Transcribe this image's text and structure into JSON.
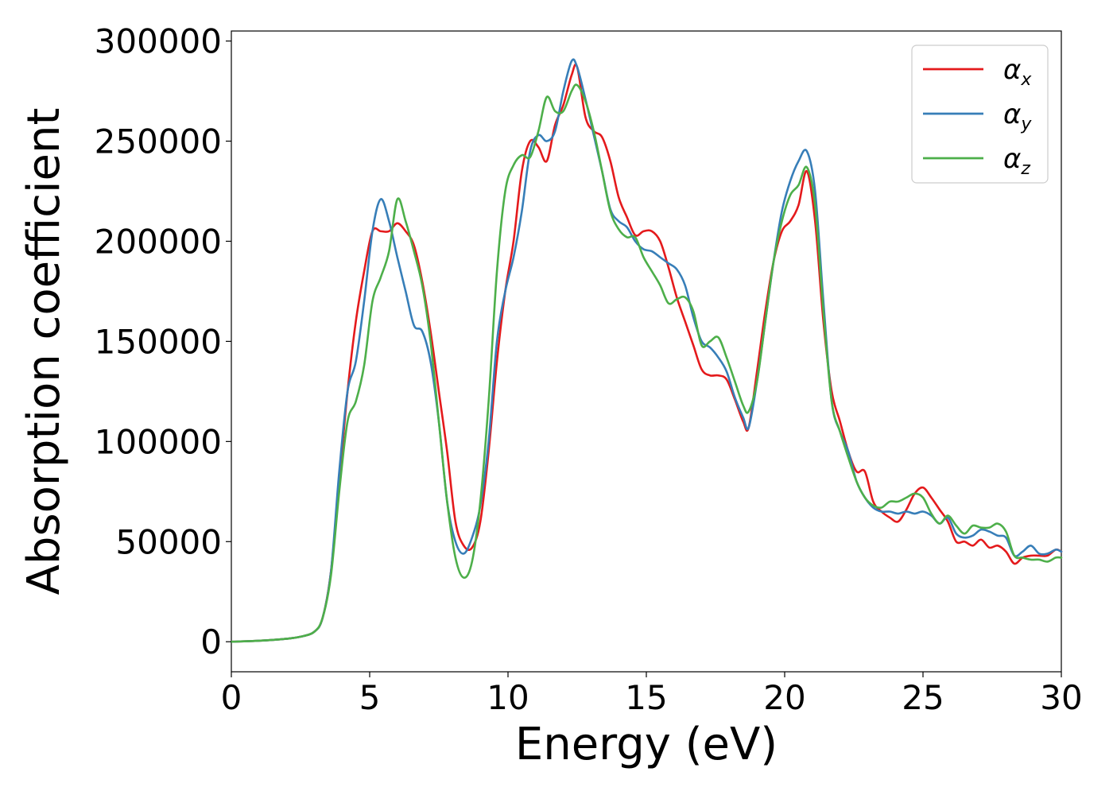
{
  "chart_data": {
    "type": "line",
    "xlabel": "Energy (eV)",
    "ylabel": "Absorption coefficient",
    "xlim": [
      0,
      30
    ],
    "ylim": [
      -15000,
      305000
    ],
    "xticks": [
      0,
      5,
      10,
      15,
      20,
      25,
      30
    ],
    "xtick_labels": [
      "0",
      "5",
      "10",
      "15",
      "20",
      "25",
      "30"
    ],
    "yticks": [
      0,
      50000,
      100000,
      150000,
      200000,
      250000,
      300000
    ],
    "ytick_labels": [
      "0",
      "50000",
      "100000",
      "150000",
      "200000",
      "250000",
      "300000"
    ],
    "grid": false,
    "legend_position": "top-right",
    "series": [
      {
        "name": "α",
        "subscript": "x",
        "color": "#e41a1c",
        "x": [
          0,
          1,
          2,
          2.5,
          3,
          3.3,
          3.6,
          3.9,
          4.2,
          4.5,
          4.8,
          5.1,
          5.4,
          5.7,
          6.0,
          6.3,
          6.6,
          6.9,
          7.2,
          7.5,
          7.8,
          8.1,
          8.4,
          8.7,
          9.0,
          9.3,
          9.6,
          9.9,
          10.2,
          10.5,
          10.8,
          11.1,
          11.4,
          11.7,
          12.0,
          12.3,
          12.5,
          12.8,
          13.1,
          13.4,
          13.7,
          14.0,
          14.3,
          14.6,
          14.9,
          15.2,
          15.5,
          15.8,
          16.1,
          16.4,
          16.7,
          17.0,
          17.3,
          17.6,
          17.9,
          18.2,
          18.5,
          18.7,
          19.0,
          19.3,
          19.6,
          19.9,
          20.2,
          20.5,
          20.8,
          21.1,
          21.4,
          21.7,
          22.0,
          22.3,
          22.6,
          22.9,
          23.2,
          23.5,
          23.8,
          24.1,
          24.4,
          24.7,
          25.0,
          25.3,
          25.6,
          25.9,
          26.2,
          26.5,
          26.8,
          27.1,
          27.4,
          27.7,
          28.0,
          28.3,
          28.6,
          28.9,
          29.2,
          29.5,
          29.8,
          30
        ],
        "y": [
          0,
          500,
          1500,
          2500,
          5000,
          12000,
          35000,
          80000,
          125000,
          160000,
          185000,
          205000,
          205000,
          205000,
          209000,
          205000,
          198000,
          180000,
          155000,
          125000,
          95000,
          60000,
          48000,
          47000,
          60000,
          95000,
          140000,
          175000,
          200000,
          235000,
          250000,
          247000,
          240000,
          258000,
          268000,
          283000,
          287000,
          262000,
          255000,
          252000,
          240000,
          222000,
          212000,
          203000,
          205000,
          205000,
          200000,
          187000,
          172000,
          160000,
          148000,
          136000,
          133000,
          133000,
          131000,
          121000,
          110000,
          107000,
          135000,
          165000,
          190000,
          205000,
          210000,
          218000,
          235000,
          210000,
          160000,
          125000,
          110000,
          95000,
          85000,
          85000,
          70000,
          65000,
          62000,
          60000,
          66000,
          74000,
          77000,
          72000,
          66000,
          60000,
          50000,
          50000,
          48000,
          51000,
          47000,
          48000,
          45000,
          39000,
          42000,
          43000,
          43000,
          43000,
          46000,
          45000
        ]
      },
      {
        "name": "α",
        "subscript": "y",
        "color": "#377eb8",
        "x": [
          0,
          1,
          2,
          2.5,
          3,
          3.3,
          3.6,
          3.9,
          4.2,
          4.5,
          4.8,
          5.1,
          5.4,
          5.7,
          6.0,
          6.3,
          6.6,
          6.9,
          7.2,
          7.5,
          7.8,
          8.1,
          8.4,
          8.7,
          9.0,
          9.3,
          9.6,
          9.9,
          10.2,
          10.5,
          10.8,
          11.1,
          11.4,
          11.7,
          12.0,
          12.3,
          12.5,
          12.8,
          13.1,
          13.4,
          13.7,
          14.0,
          14.3,
          14.6,
          14.9,
          15.2,
          15.5,
          15.8,
          16.1,
          16.4,
          16.7,
          17.0,
          17.3,
          17.6,
          17.9,
          18.2,
          18.5,
          18.7,
          19.0,
          19.3,
          19.6,
          19.9,
          20.2,
          20.5,
          20.8,
          21.1,
          21.4,
          21.7,
          22.0,
          22.3,
          22.6,
          22.9,
          23.2,
          23.5,
          23.8,
          24.1,
          24.4,
          24.7,
          25.0,
          25.3,
          25.6,
          25.9,
          26.2,
          26.5,
          26.8,
          27.1,
          27.4,
          27.7,
          28.0,
          28.3,
          28.6,
          28.9,
          29.2,
          29.5,
          29.8,
          30
        ],
        "y": [
          0,
          500,
          1500,
          2500,
          5000,
          12000,
          35000,
          85000,
          125000,
          140000,
          170000,
          205000,
          221000,
          210000,
          192000,
          175000,
          158000,
          155000,
          140000,
          110000,
          70000,
          50000,
          44000,
          52000,
          68000,
          100000,
          150000,
          175000,
          192000,
          215000,
          245000,
          253000,
          250000,
          255000,
          275000,
          290000,
          287000,
          271000,
          253000,
          235000,
          216000,
          210000,
          207000,
          200000,
          196000,
          195000,
          192000,
          189000,
          186000,
          178000,
          162000,
          150000,
          147000,
          142000,
          135000,
          122000,
          112000,
          107000,
          130000,
          160000,
          190000,
          215000,
          230000,
          240000,
          245000,
          225000,
          170000,
          120000,
          105000,
          95000,
          80000,
          72000,
          67000,
          65000,
          65000,
          64000,
          65000,
          64000,
          65000,
          63000,
          59000,
          62000,
          54000,
          52000,
          53000,
          56000,
          55000,
          53000,
          52000,
          43000,
          45000,
          48000,
          44000,
          44000,
          46000,
          45000
        ]
      },
      {
        "name": "α",
        "subscript": "z",
        "color": "#4daf4a",
        "x": [
          0,
          1,
          2,
          2.5,
          3,
          3.3,
          3.6,
          3.9,
          4.2,
          4.5,
          4.8,
          5.1,
          5.4,
          5.7,
          6.0,
          6.3,
          6.6,
          6.9,
          7.2,
          7.5,
          7.8,
          8.1,
          8.4,
          8.7,
          9.0,
          9.3,
          9.6,
          9.9,
          10.2,
          10.5,
          10.8,
          11.1,
          11.4,
          11.7,
          12.0,
          12.3,
          12.5,
          12.8,
          13.1,
          13.4,
          13.7,
          14.0,
          14.3,
          14.6,
          14.9,
          15.2,
          15.5,
          15.8,
          16.1,
          16.4,
          16.7,
          17.0,
          17.3,
          17.6,
          17.9,
          18.2,
          18.5,
          18.7,
          19.0,
          19.3,
          19.6,
          19.9,
          20.2,
          20.5,
          20.8,
          21.1,
          21.4,
          21.7,
          22.0,
          22.3,
          22.6,
          22.9,
          23.2,
          23.5,
          23.8,
          24.1,
          24.4,
          24.7,
          25.0,
          25.3,
          25.6,
          25.9,
          26.2,
          26.5,
          26.8,
          27.1,
          27.4,
          27.7,
          28.0,
          28.3,
          28.6,
          28.9,
          29.2,
          29.5,
          29.8,
          30
        ],
        "y": [
          0,
          500,
          1500,
          2500,
          5000,
          12000,
          33000,
          75000,
          110000,
          120000,
          138000,
          170000,
          182000,
          195000,
          221000,
          210000,
          195000,
          178000,
          150000,
          110000,
          70000,
          42000,
          32000,
          40000,
          70000,
          120000,
          185000,
          225000,
          238000,
          243000,
          242000,
          255000,
          272000,
          265000,
          265000,
          275000,
          278000,
          270000,
          255000,
          235000,
          215000,
          206000,
          202000,
          202000,
          192000,
          185000,
          178000,
          169000,
          171000,
          172000,
          165000,
          148000,
          150000,
          152000,
          142000,
          130000,
          118000,
          115000,
          130000,
          160000,
          190000,
          210000,
          223000,
          228000,
          237000,
          218000,
          165000,
          120000,
          105000,
          92000,
          80000,
          72000,
          68000,
          67000,
          70000,
          70000,
          72000,
          74000,
          72000,
          64000,
          59000,
          63000,
          58000,
          54000,
          58000,
          57000,
          57000,
          59000,
          55000,
          43000,
          42000,
          41000,
          41000,
          40000,
          42000,
          42000
        ]
      }
    ]
  }
}
